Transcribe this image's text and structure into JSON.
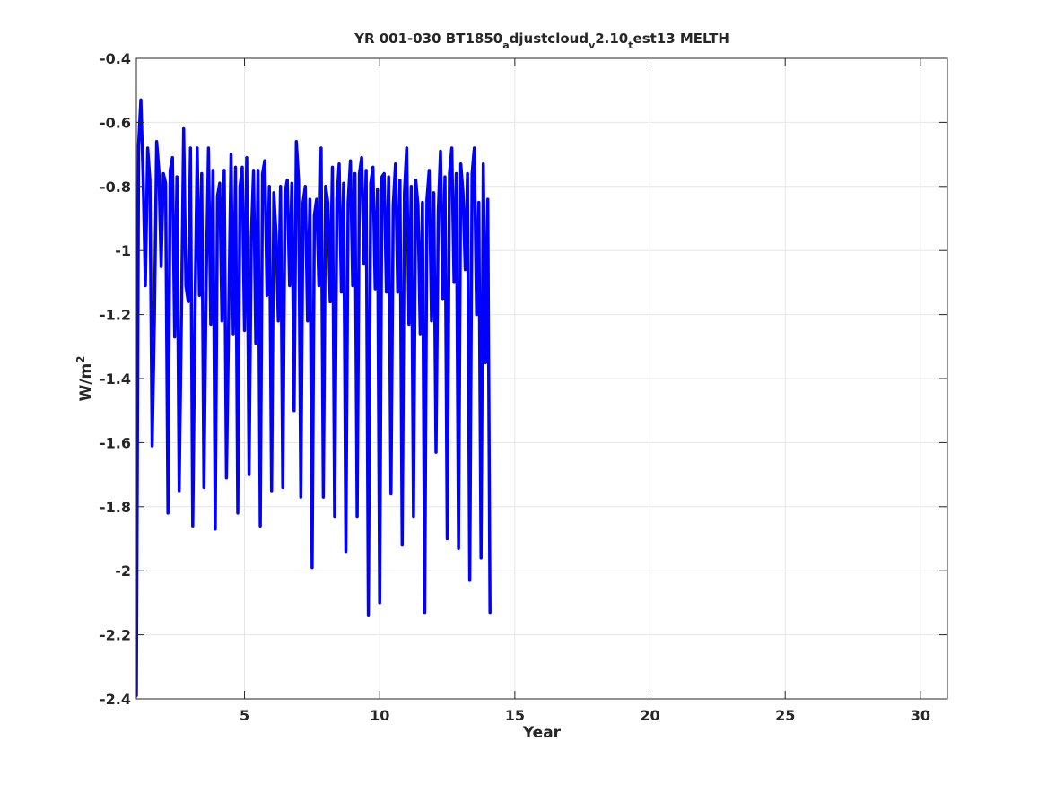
{
  "chart_data": {
    "type": "line",
    "title": {
      "prefix": "YR 001-030 BT1850",
      "sub1": "a",
      "mid1": "djustcloud",
      "sub2": "v",
      "mid2": "2.10",
      "sub3": "t",
      "suffix": "est13 MELTH"
    },
    "xlabel": "Year",
    "ylabel": {
      "base": "W/m",
      "sup": "2"
    },
    "xlim": [
      1,
      31
    ],
    "ylim": [
      -2.4,
      -0.4
    ],
    "xticks": [
      5,
      10,
      15,
      20,
      25,
      30
    ],
    "xtick_labels": [
      "5",
      "10",
      "15",
      "20",
      "25",
      "30"
    ],
    "yticks": [
      -2.4,
      -2.2,
      -2,
      -1.8,
      -1.6,
      -1.4,
      -1.2,
      -1,
      -0.8,
      -0.6,
      -0.4
    ],
    "ytick_labels": [
      "-2.4",
      "-2.2",
      "-2",
      "-1.8",
      "-1.6",
      "-1.4",
      "-1.2",
      "-1",
      "-0.8",
      "-0.6",
      "-0.4"
    ],
    "grid": true,
    "line_color": "#0000ff",
    "series": [
      {
        "x_start": 1,
        "x_step": 0.083333,
        "values": [
          -2.39,
          -0.67,
          -0.53,
          -0.77,
          -1.11,
          -0.68,
          -0.78,
          -1.61,
          -1.21,
          -0.66,
          -0.75,
          -1.05,
          -0.76,
          -0.79,
          -1.82,
          -0.75,
          -0.71,
          -1.27,
          -0.77,
          -1.75,
          -1.21,
          -0.62,
          -1.11,
          -1.16,
          -0.68,
          -1.86,
          -1.2,
          -0.68,
          -1.14,
          -0.76,
          -1.74,
          -1.1,
          -0.68,
          -1.23,
          -0.75,
          -1.87,
          -0.83,
          -0.79,
          -1.22,
          -0.75,
          -1.71,
          -1.19,
          -0.7,
          -1.26,
          -0.74,
          -1.82,
          -0.8,
          -0.74,
          -1.25,
          -0.71,
          -1.7,
          -0.96,
          -0.75,
          -1.29,
          -0.75,
          -1.86,
          -0.76,
          -0.72,
          -1.14,
          -0.8,
          -1.75,
          -0.82,
          -0.95,
          -1.22,
          -0.8,
          -1.74,
          -0.82,
          -0.78,
          -1.11,
          -0.79,
          -1.5,
          -0.66,
          -0.78,
          -1.77,
          -0.85,
          -0.8,
          -1.22,
          -0.84,
          -1.99,
          -0.89,
          -0.84,
          -1.11,
          -0.68,
          -1.77,
          -0.8,
          -0.85,
          -1.16,
          -0.74,
          -1.83,
          -0.84,
          -0.73,
          -1.13,
          -0.79,
          -1.94,
          -0.85,
          -0.72,
          -1.11,
          -0.76,
          -1.83,
          -0.76,
          -0.71,
          -1.04,
          -0.75,
          -2.14,
          -0.79,
          -0.74,
          -1.12,
          -0.81,
          -2.1,
          -0.77,
          -0.76,
          -1.13,
          -0.77,
          -1.76,
          -0.86,
          -0.73,
          -1.13,
          -0.78,
          -1.92,
          -0.82,
          -0.68,
          -1.23,
          -0.8,
          -1.83,
          -0.78,
          -0.86,
          -1.26,
          -0.85,
          -2.13,
          -0.84,
          -0.75,
          -1.22,
          -0.82,
          -1.63,
          -0.88,
          -0.69,
          -1.15,
          -0.77,
          -1.9,
          -0.76,
          -0.68,
          -1.1,
          -0.76,
          -1.93,
          -0.73,
          -0.82,
          -1.06,
          -0.76,
          -2.03,
          -0.76,
          -0.68,
          -1.2,
          -0.85,
          -1.96,
          -0.73,
          -1.35,
          -0.84,
          -2.13
        ]
      }
    ]
  }
}
